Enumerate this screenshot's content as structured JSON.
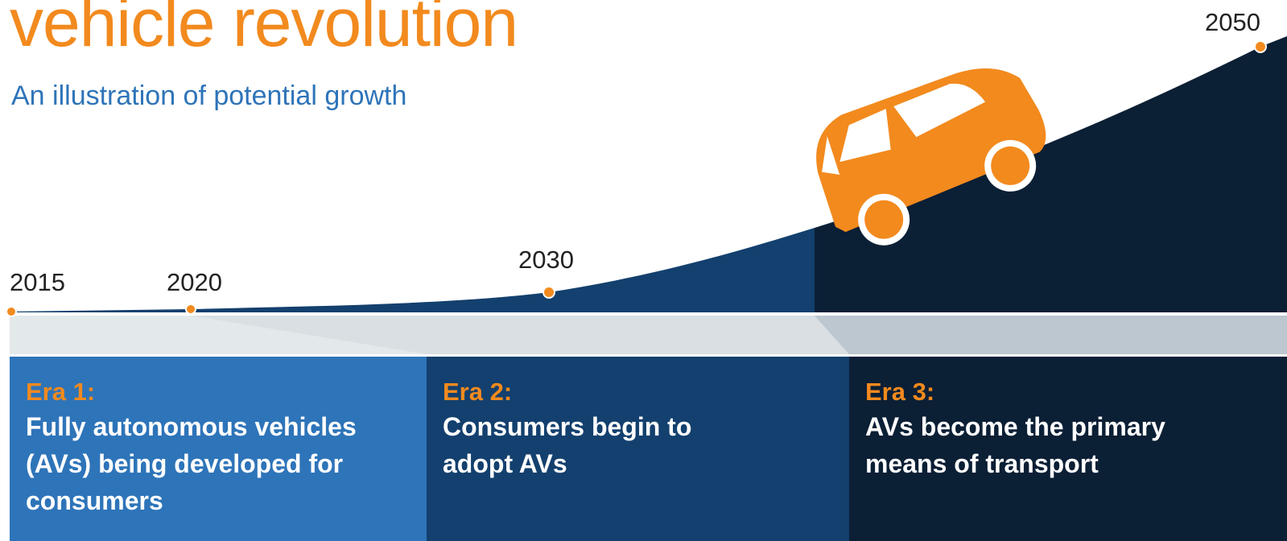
{
  "header": {
    "title": "vehicle revolution",
    "subtitle": "An illustration of potential growth"
  },
  "timeline": {
    "years": [
      "2015",
      "2020",
      "2030",
      "2050"
    ]
  },
  "eras": [
    {
      "label": "Era 1:",
      "text": "Fully autonomous vehicles (AVs) being developed for consumers"
    },
    {
      "label": "Era 2:",
      "text": "Consumers begin to adopt AVs"
    },
    {
      "label": "Era 3:",
      "text": "AVs become the primary means of transport"
    }
  ]
}
